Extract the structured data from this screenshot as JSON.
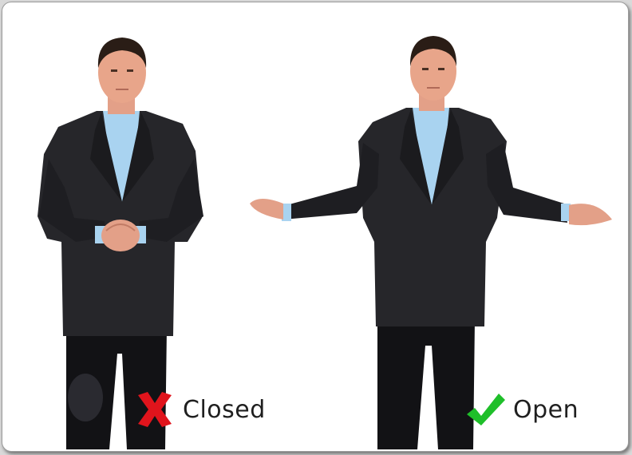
{
  "labels": {
    "closed": "Closed",
    "open": "Open"
  },
  "colors": {
    "cross": "#e0141c",
    "check": "#1fbf2a",
    "suit": "#242427",
    "shirt": "#a9d3f0",
    "skin": "#e8a58a",
    "hair": "#2a1d16",
    "trousers": "#111114"
  },
  "icons": {
    "closed": "red-cross-icon",
    "open": "green-checkmark-icon"
  }
}
